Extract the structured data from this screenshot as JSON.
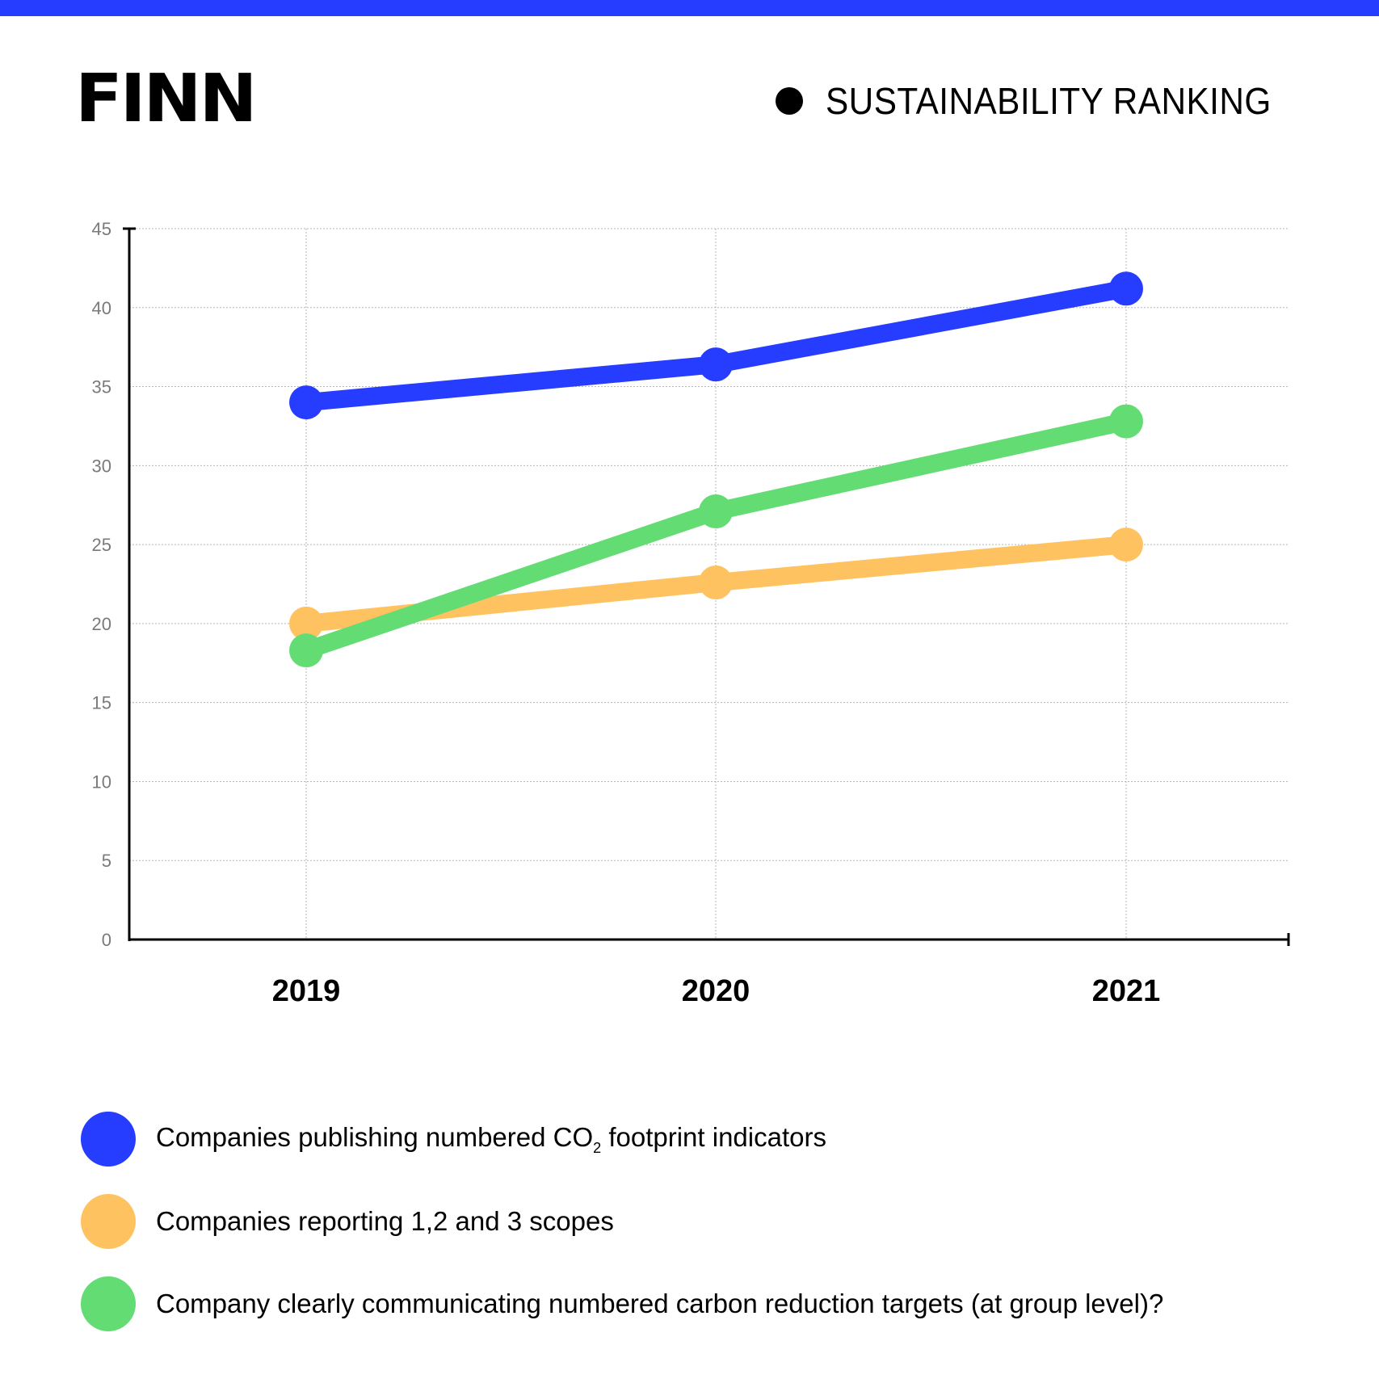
{
  "header": {
    "logo": "FINN",
    "title": "SUSTAINABILITY RANKING",
    "accent_color": "#263dff"
  },
  "chart_data": {
    "type": "line",
    "title": "SUSTAINABILITY RANKING",
    "xlabel": "",
    "ylabel": "",
    "categories": [
      "2019",
      "2020",
      "2021"
    ],
    "ylim": [
      0,
      45
    ],
    "yticks": [
      0,
      5,
      10,
      15,
      20,
      25,
      30,
      35,
      40,
      45
    ],
    "grid": true,
    "legend_position": "bottom",
    "series": [
      {
        "name": "Companies publishing numbered CO2 footprint indicators",
        "label_main": "Companies publishing numbered CO",
        "label_sub": "2",
        "label_tail": " footprint indicators",
        "color": "#263dff",
        "values": [
          34,
          36.4,
          41.2
        ]
      },
      {
        "name": "Companies reporting 1,2 and 3 scopes",
        "label_main": "Companies reporting 1,2 and 3 scopes",
        "label_sub": "",
        "label_tail": "",
        "color": "#ffc260",
        "values": [
          20,
          22.6,
          25
        ]
      },
      {
        "name": "Company clearly communicating numbered carbon reduction targets (at group level)?",
        "label_main": "Company clearly communicating numbered carbon reduction targets (at group level)?",
        "label_sub": "",
        "label_tail": "",
        "color": "#64dc74",
        "values": [
          18.3,
          27.1,
          32.8
        ]
      }
    ]
  }
}
